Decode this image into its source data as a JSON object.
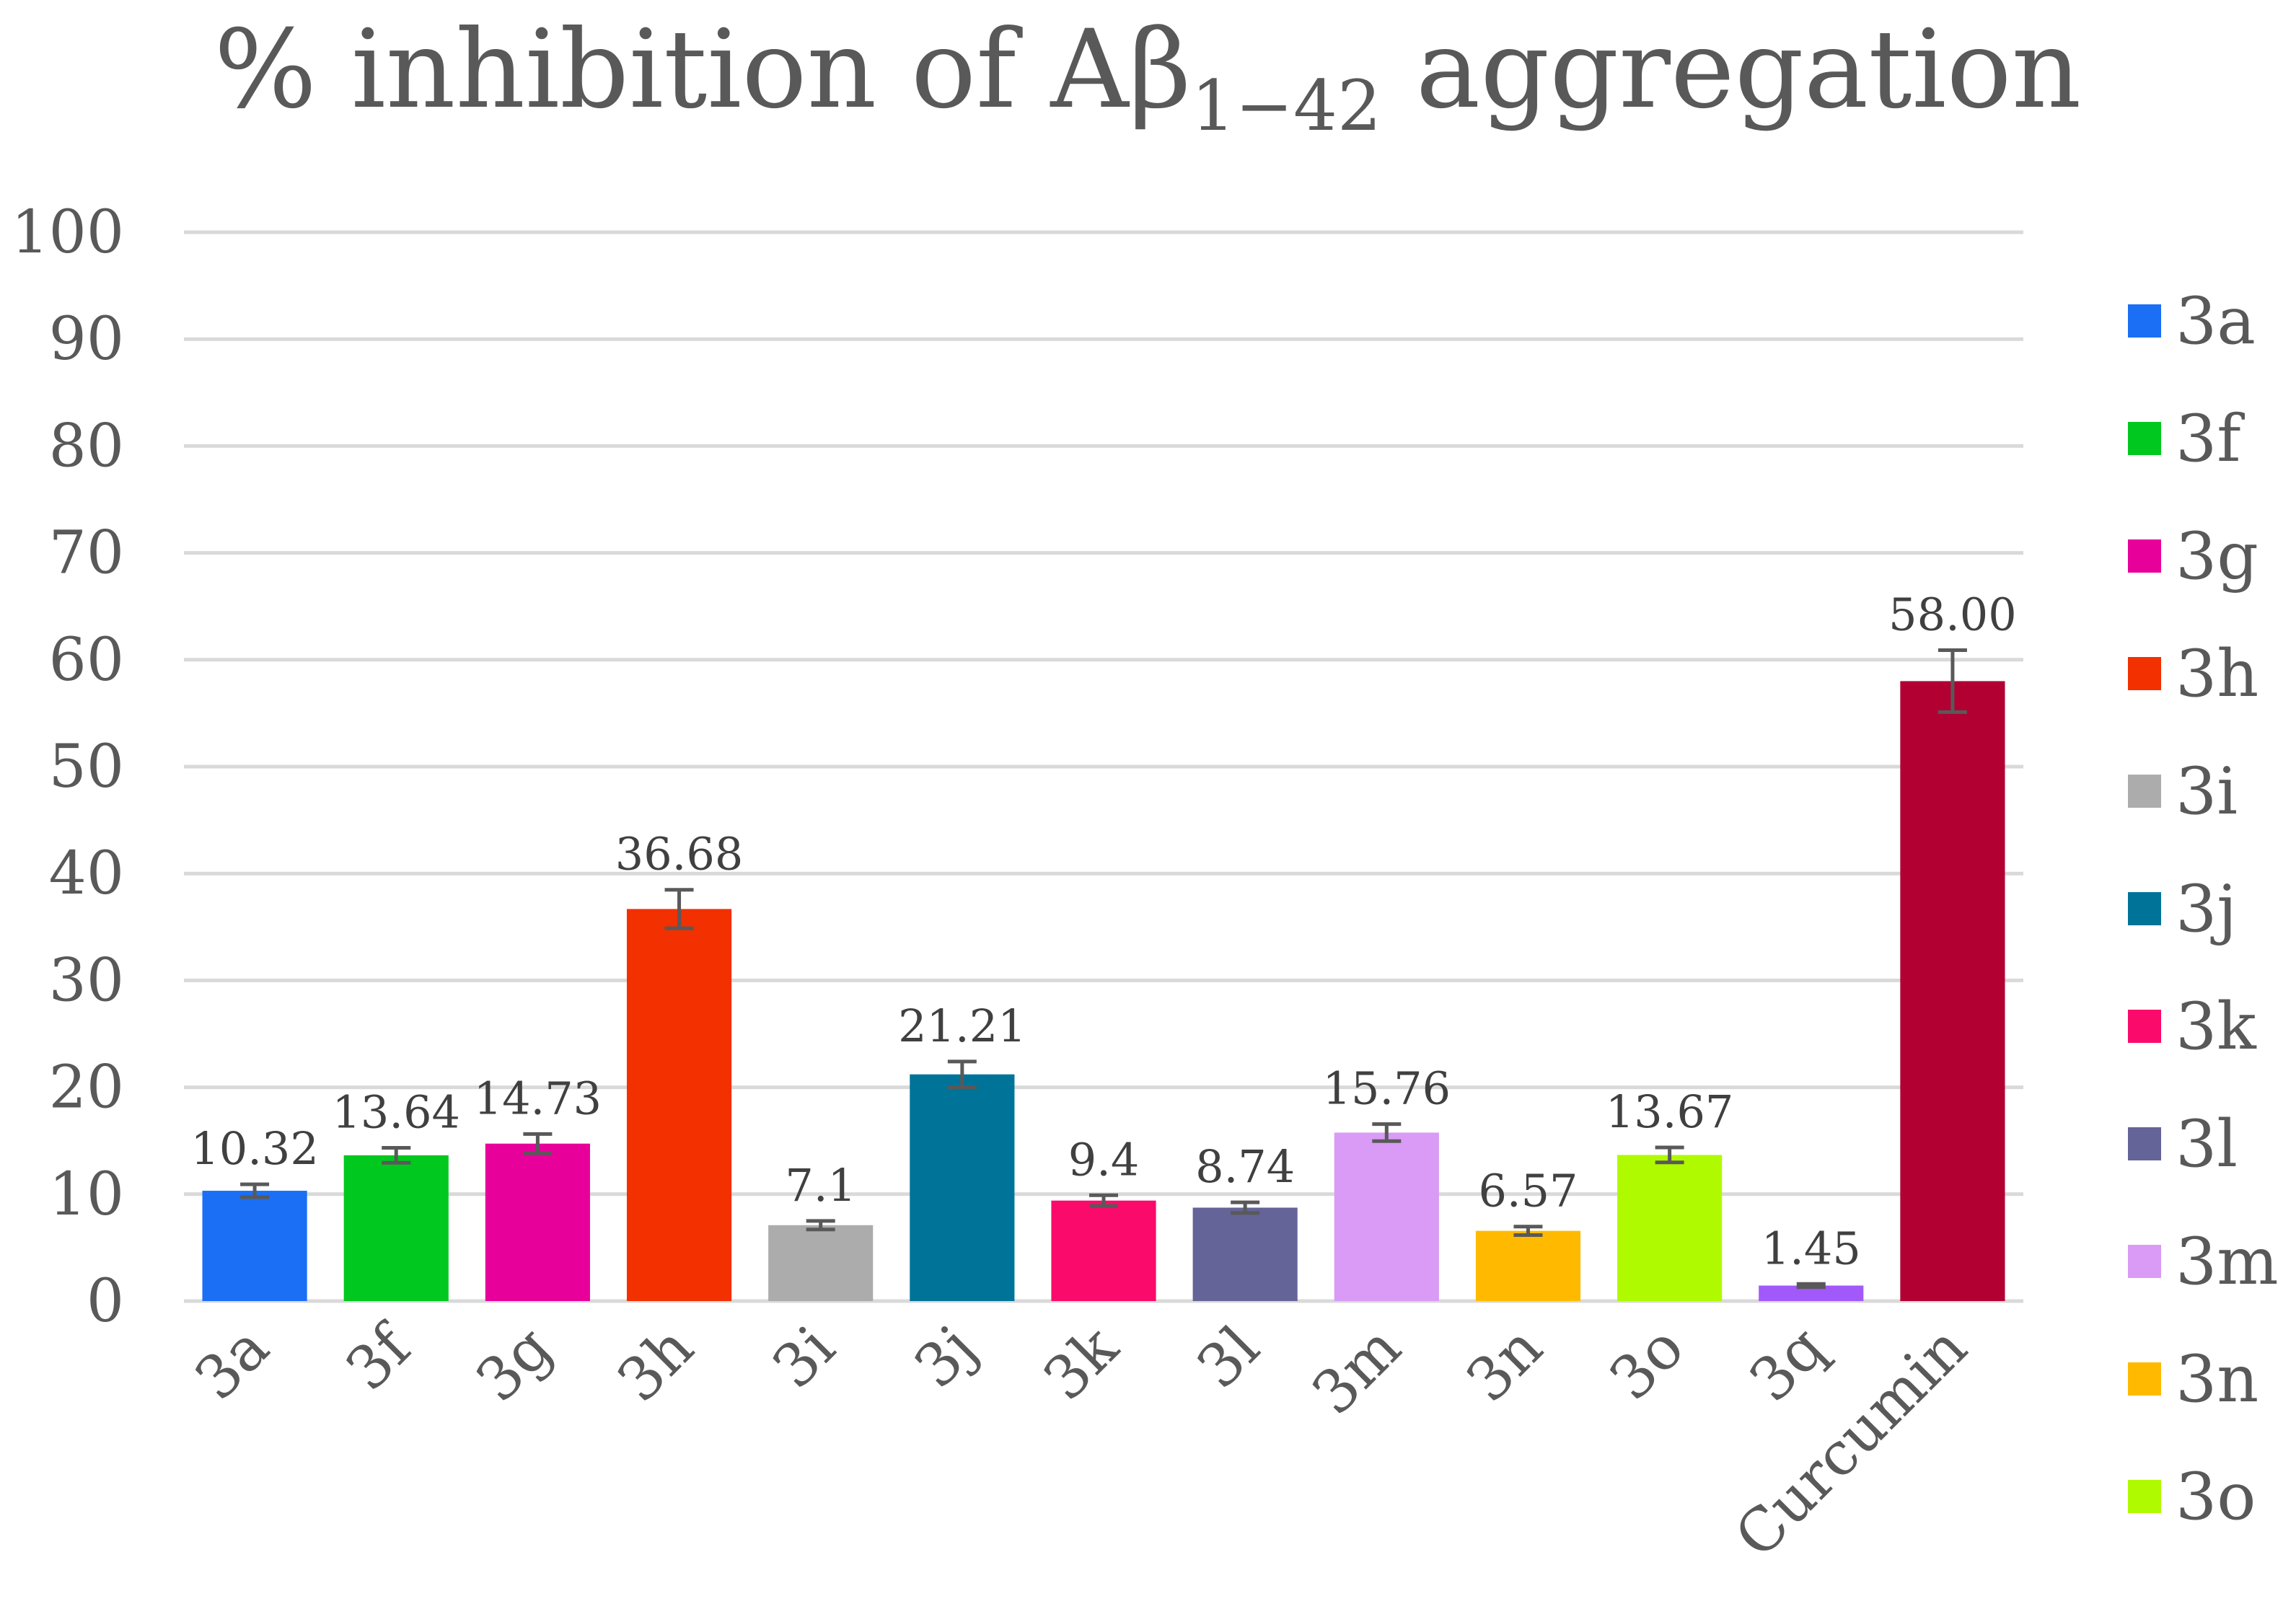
{
  "chart_data": {
    "type": "bar",
    "title": "% inhibition of Aβ",
    "title_subscript": "1−42",
    "title_suffix": " aggregation",
    "xlabel": "",
    "ylabel": "",
    "ylim": [
      0,
      100
    ],
    "yticks": [
      "0",
      "10",
      "20",
      "30",
      "40",
      "50",
      "60",
      "70",
      "80",
      "90",
      "100"
    ],
    "grid": true,
    "legend_position": "right",
    "categories": [
      "3a",
      "3f",
      "3g",
      "3h",
      "3i",
      "3j",
      "3k",
      "3l",
      "3m",
      "3n",
      "3o",
      "3q",
      "Curcumin"
    ],
    "values": [
      10.32,
      13.64,
      14.73,
      36.68,
      7.1,
      21.21,
      9.4,
      8.74,
      15.76,
      6.57,
      13.67,
      1.45,
      58.0
    ],
    "data_labels": [
      "10.32",
      "13.64",
      "14.73",
      "36.68",
      "7.1",
      "21.21",
      "9.4",
      "8.74",
      "15.76",
      "6.57",
      "13.67",
      "1.45",
      "58.00"
    ],
    "errors": [
      0.6,
      0.7,
      0.9,
      1.8,
      0.4,
      1.2,
      0.5,
      0.5,
      0.8,
      0.4,
      0.7,
      0.15,
      2.9
    ],
    "colors": [
      "#1a6ff5",
      "#00c81e",
      "#e8009a",
      "#f23000",
      "#acacac",
      "#007399",
      "#fa0a6a",
      "#646499",
      "#d99bf5",
      "#ffba00",
      "#b0fa00",
      "#a259fa",
      "#b30033"
    ],
    "legend": [
      "3a",
      "3f",
      "3g",
      "3h",
      "3i",
      "3j",
      "3k",
      "3l",
      "3m",
      "3n",
      "3o"
    ]
  }
}
